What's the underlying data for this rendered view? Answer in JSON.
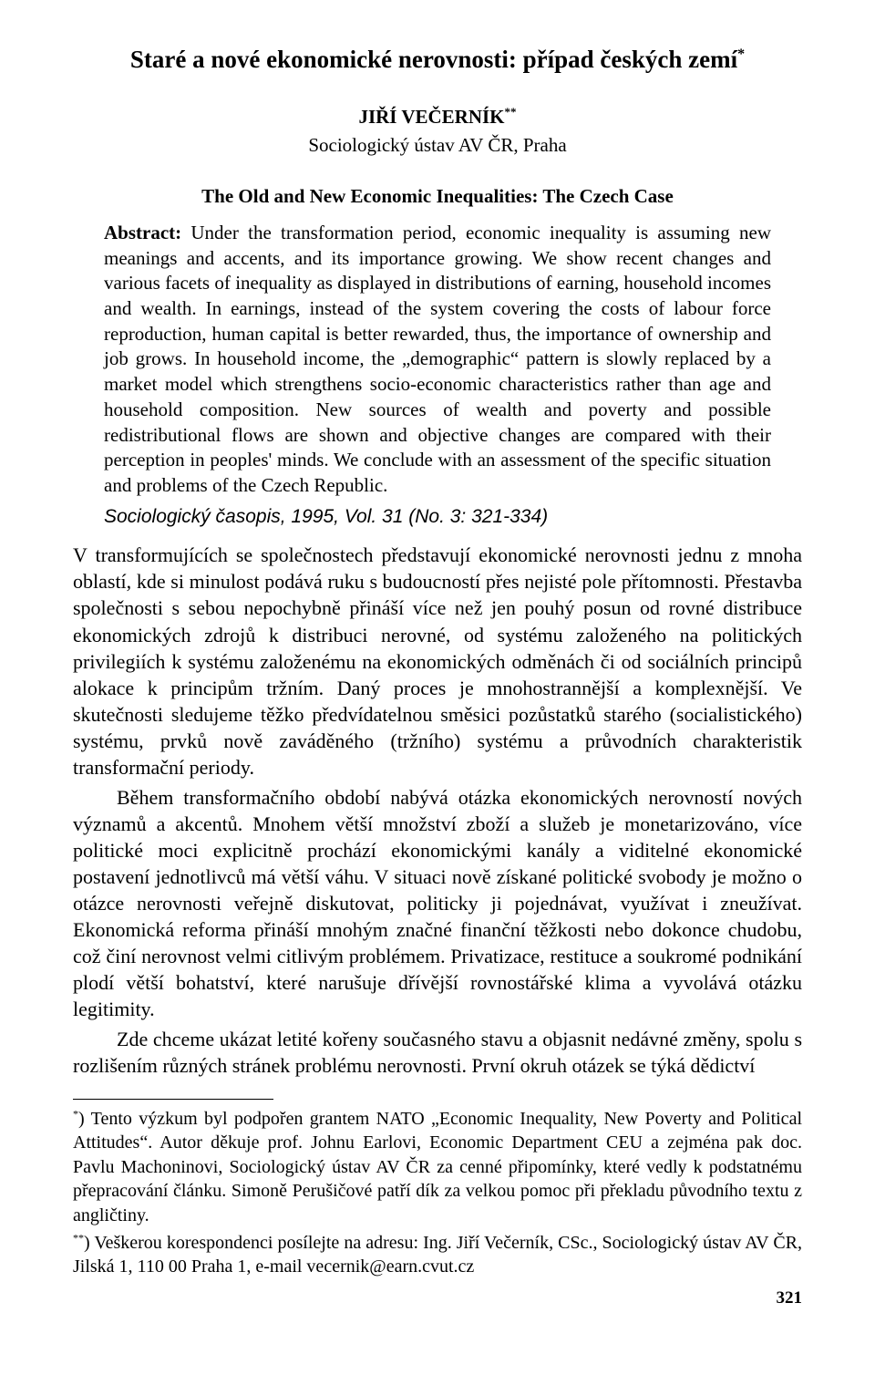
{
  "title": "Staré a nové ekonomické nerovnosti: případ českých zemí",
  "title_marker": "*",
  "author": "JIŘÍ VEČERNÍK",
  "author_marker": "**",
  "affiliation": "Sociologický ústav AV ČR, Praha",
  "subtitle": "The Old and New Economic Inequalities: The Czech Case",
  "abstract_label": "Abstract: ",
  "abstract": "Under the transformation period, economic inequality is assuming new meanings and accents, and its importance growing. We show recent changes and various facets of inequality as displayed in distributions of earning, household incomes and wealth. In earnings, instead of the system covering the costs of labour force reproduction, human capital is better rewarded, thus, the importance of ownership and job grows. In household income, the „demographic“ pattern is slowly replaced by a market model which strengthens socio-economic characteristics rather than age and household composition. New sources of wealth and poverty and possible redistributional flows are shown and objective changes are compared with their perception in peoples' minds. We conclude with an assessment of the specific situation and problems of the Czech Republic.",
  "citation": "Sociologický časopis, 1995, Vol. 31 (No. 3: 321-334)",
  "para1": "V transformujících se společnostech představují ekonomické nerovnosti jednu z mnoha oblastí, kde si minulost podává ruku s budoucností přes nejisté pole přítomnosti. Přestavba společnosti s sebou nepochybně přináší více než jen pouhý posun od rovné distribuce ekonomických zdrojů k distribuci nerovné, od systému založeného na politických privilegiích k systému založenému na ekonomických odměnách či od sociálních principů alokace k principům tržním. Daný proces je mnohostrannější a komplexnější. Ve skutečnosti sledujeme těžko předvídatelnou směsici pozůstatků starého (socialistického) systému, prvků nově zaváděného (tržního) systému a průvodních charakteristik transformační periody.",
  "para2": "Během transformačního období nabývá otázka ekonomických nerovností nových významů a akcentů. Mnohem větší množství zboží a služeb je monetarizováno, více politické moci explicitně prochází ekonomickými kanály a viditelné ekonomické postavení jednotlivců má větší váhu. V situaci nově získané politické svobody je možno o otázce nerovnosti veřejně diskutovat, politicky ji pojednávat, využívat i zneužívat. Ekonomická reforma přináší mnohým značné finanční těžkosti nebo dokonce chudobu, což činí nerovnost velmi citlivým problémem. Privatizace, restituce a soukromé podnikání plodí větší bohatství, které narušuje dřívější rovnostářské klima a vyvolává otázku legitimity.",
  "para3": "Zde chceme ukázat letité kořeny současného stavu a objasnit nedávné změny, spolu s rozlišením různých stránek problému nerovnosti. První okruh otázek se týká dědictví",
  "footnote1_marker": "*",
  "footnote1": ") Tento výzkum byl podpořen grantem NATO „Economic Inequality, New Poverty and Political Attitudes“. Autor děkuje prof. Johnu Earlovi, Economic Department CEU a zejména pak doc. Pavlu Machoninovi, Sociologický ústav AV ČR za cenné připomínky, které vedly k podstatnému přepracování článku. Simoně Perušičové patří dík za velkou pomoc při překladu původního textu z angličtiny.",
  "footnote2_marker": "**",
  "footnote2": ") Veškerou korespondenci posílejte na adresu: Ing. Jiří Večerník, CSc., Sociologický ústav AV ČR, Jilská 1, 110 00 Praha 1, e-mail vecernik@earn.cvut.cz",
  "page_number": "321"
}
